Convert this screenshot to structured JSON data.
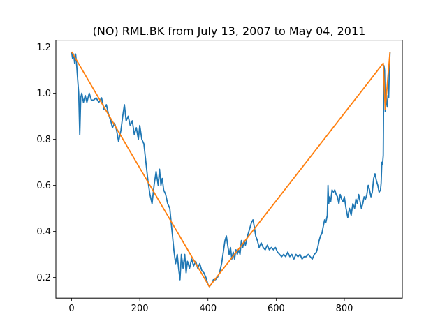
{
  "chart_data": {
    "type": "line",
    "title": "(NO) RML.BK from July 13, 2007 to May 04, 2011",
    "xlabel": "",
    "ylabel": "",
    "xlim": [
      -46,
      970
    ],
    "ylim": [
      0.11,
      1.23
    ],
    "xticks": [
      0,
      200,
      400,
      600,
      800
    ],
    "yticks": [
      0.2,
      0.4,
      0.6,
      0.8,
      1.0,
      1.2
    ],
    "xtick_labels": [
      "0",
      "200",
      "400",
      "600",
      "800"
    ],
    "ytick_labels": [
      "0.2",
      "0.4",
      "0.6",
      "0.8",
      "1.0",
      "1.2"
    ],
    "grid": false,
    "series": [
      {
        "color": "#1f77b4",
        "points": [
          [
            0,
            1.18
          ],
          [
            3,
            1.15
          ],
          [
            6,
            1.17
          ],
          [
            9,
            1.13
          ],
          [
            12,
            1.17
          ],
          [
            15,
            1.12
          ],
          [
            18,
            1.06
          ],
          [
            21,
            1.0
          ],
          [
            24,
            0.82
          ],
          [
            27,
            0.98
          ],
          [
            30,
            1.0
          ],
          [
            35,
            0.96
          ],
          [
            40,
            0.99
          ],
          [
            45,
            0.96
          ],
          [
            52,
            1.0
          ],
          [
            58,
            0.97
          ],
          [
            65,
            0.97
          ],
          [
            72,
            0.98
          ],
          [
            80,
            0.96
          ],
          [
            88,
            0.98
          ],
          [
            95,
            0.93
          ],
          [
            102,
            0.95
          ],
          [
            108,
            0.91
          ],
          [
            115,
            0.88
          ],
          [
            120,
            0.85
          ],
          [
            126,
            0.87
          ],
          [
            132,
            0.84
          ],
          [
            138,
            0.79
          ],
          [
            145,
            0.84
          ],
          [
            150,
            0.9
          ],
          [
            155,
            0.95
          ],
          [
            160,
            0.88
          ],
          [
            166,
            0.9
          ],
          [
            172,
            0.86
          ],
          [
            178,
            0.88
          ],
          [
            184,
            0.82
          ],
          [
            190,
            0.85
          ],
          [
            196,
            0.8
          ],
          [
            200,
            0.86
          ],
          [
            206,
            0.8
          ],
          [
            212,
            0.78
          ],
          [
            218,
            0.7
          ],
          [
            224,
            0.62
          ],
          [
            230,
            0.56
          ],
          [
            236,
            0.52
          ],
          [
            242,
            0.6
          ],
          [
            248,
            0.66
          ],
          [
            254,
            0.6
          ],
          [
            258,
            0.67
          ],
          [
            262,
            0.6
          ],
          [
            266,
            0.63
          ],
          [
            270,
            0.58
          ],
          [
            276,
            0.56
          ],
          [
            282,
            0.52
          ],
          [
            288,
            0.5
          ],
          [
            292,
            0.44
          ],
          [
            296,
            0.38
          ],
          [
            300,
            0.32
          ],
          [
            305,
            0.26
          ],
          [
            310,
            0.3
          ],
          [
            314,
            0.24
          ],
          [
            318,
            0.19
          ],
          [
            322,
            0.3
          ],
          [
            327,
            0.24
          ],
          [
            332,
            0.3
          ],
          [
            336,
            0.22
          ],
          [
            340,
            0.27
          ],
          [
            346,
            0.24
          ],
          [
            352,
            0.28
          ],
          [
            358,
            0.25
          ],
          [
            364,
            0.27
          ],
          [
            370,
            0.24
          ],
          [
            376,
            0.26
          ],
          [
            382,
            0.23
          ],
          [
            388,
            0.22
          ],
          [
            394,
            0.2
          ],
          [
            400,
            0.17
          ],
          [
            404,
            0.16
          ],
          [
            410,
            0.17
          ],
          [
            416,
            0.19
          ],
          [
            422,
            0.19
          ],
          [
            428,
            0.2
          ],
          [
            434,
            0.22
          ],
          [
            440,
            0.26
          ],
          [
            446,
            0.32
          ],
          [
            450,
            0.36
          ],
          [
            454,
            0.38
          ],
          [
            458,
            0.34
          ],
          [
            462,
            0.3
          ],
          [
            466,
            0.33
          ],
          [
            470,
            0.28
          ],
          [
            474,
            0.31
          ],
          [
            478,
            0.28
          ],
          [
            482,
            0.32
          ],
          [
            486,
            0.3
          ],
          [
            490,
            0.32
          ],
          [
            494,
            0.3
          ],
          [
            498,
            0.36
          ],
          [
            502,
            0.33
          ],
          [
            506,
            0.36
          ],
          [
            510,
            0.34
          ],
          [
            516,
            0.38
          ],
          [
            522,
            0.41
          ],
          [
            528,
            0.44
          ],
          [
            532,
            0.45
          ],
          [
            536,
            0.42
          ],
          [
            540,
            0.38
          ],
          [
            545,
            0.36
          ],
          [
            550,
            0.33
          ],
          [
            556,
            0.35
          ],
          [
            562,
            0.33
          ],
          [
            568,
            0.32
          ],
          [
            574,
            0.34
          ],
          [
            580,
            0.32
          ],
          [
            586,
            0.33
          ],
          [
            592,
            0.32
          ],
          [
            598,
            0.33
          ],
          [
            604,
            0.31
          ],
          [
            610,
            0.3
          ],
          [
            616,
            0.29
          ],
          [
            622,
            0.3
          ],
          [
            628,
            0.29
          ],
          [
            634,
            0.31
          ],
          [
            640,
            0.29
          ],
          [
            646,
            0.3
          ],
          [
            652,
            0.28
          ],
          [
            658,
            0.3
          ],
          [
            664,
            0.29
          ],
          [
            670,
            0.3
          ],
          [
            676,
            0.28
          ],
          [
            682,
            0.29
          ],
          [
            688,
            0.29
          ],
          [
            694,
            0.3
          ],
          [
            700,
            0.29
          ],
          [
            706,
            0.28
          ],
          [
            712,
            0.3
          ],
          [
            718,
            0.31
          ],
          [
            722,
            0.33
          ],
          [
            726,
            0.36
          ],
          [
            730,
            0.38
          ],
          [
            734,
            0.39
          ],
          [
            738,
            0.42
          ],
          [
            742,
            0.45
          ],
          [
            746,
            0.44
          ],
          [
            750,
            0.47
          ],
          [
            752,
            0.6
          ],
          [
            754,
            0.52
          ],
          [
            757,
            0.55
          ],
          [
            760,
            0.53
          ],
          [
            764,
            0.58
          ],
          [
            768,
            0.57
          ],
          [
            772,
            0.58
          ],
          [
            776,
            0.56
          ],
          [
            780,
            0.55
          ],
          [
            784,
            0.52
          ],
          [
            788,
            0.56
          ],
          [
            792,
            0.54
          ],
          [
            796,
            0.53
          ],
          [
            800,
            0.55
          ],
          [
            805,
            0.5
          ],
          [
            810,
            0.46
          ],
          [
            815,
            0.5
          ],
          [
            820,
            0.47
          ],
          [
            825,
            0.52
          ],
          [
            830,
            0.5
          ],
          [
            834,
            0.54
          ],
          [
            838,
            0.52
          ],
          [
            842,
            0.56
          ],
          [
            846,
            0.53
          ],
          [
            850,
            0.5
          ],
          [
            854,
            0.52
          ],
          [
            858,
            0.55
          ],
          [
            862,
            0.54
          ],
          [
            866,
            0.56
          ],
          [
            870,
            0.6
          ],
          [
            874,
            0.58
          ],
          [
            878,
            0.55
          ],
          [
            882,
            0.57
          ],
          [
            886,
            0.63
          ],
          [
            890,
            0.65
          ],
          [
            894,
            0.62
          ],
          [
            898,
            0.6
          ],
          [
            902,
            0.57
          ],
          [
            906,
            0.58
          ],
          [
            908,
            0.61
          ],
          [
            910,
            0.7
          ],
          [
            912,
            0.69
          ],
          [
            914,
            0.73
          ],
          [
            916,
            1.12
          ],
          [
            918,
            1.1
          ],
          [
            920,
            0.92
          ],
          [
            922,
            1.0
          ],
          [
            924,
            0.96
          ],
          [
            926,
            0.94
          ],
          [
            928,
            0.99
          ],
          [
            930,
            0.98
          ],
          [
            932,
            1.1
          ],
          [
            934,
            1.18
          ]
        ]
      },
      {
        "color": "#ff7f0e",
        "points": [
          [
            0,
            1.18
          ],
          [
            404,
            0.16
          ],
          [
            914,
            1.13
          ],
          [
            920,
            0.93
          ],
          [
            934,
            1.18
          ]
        ]
      }
    ]
  }
}
